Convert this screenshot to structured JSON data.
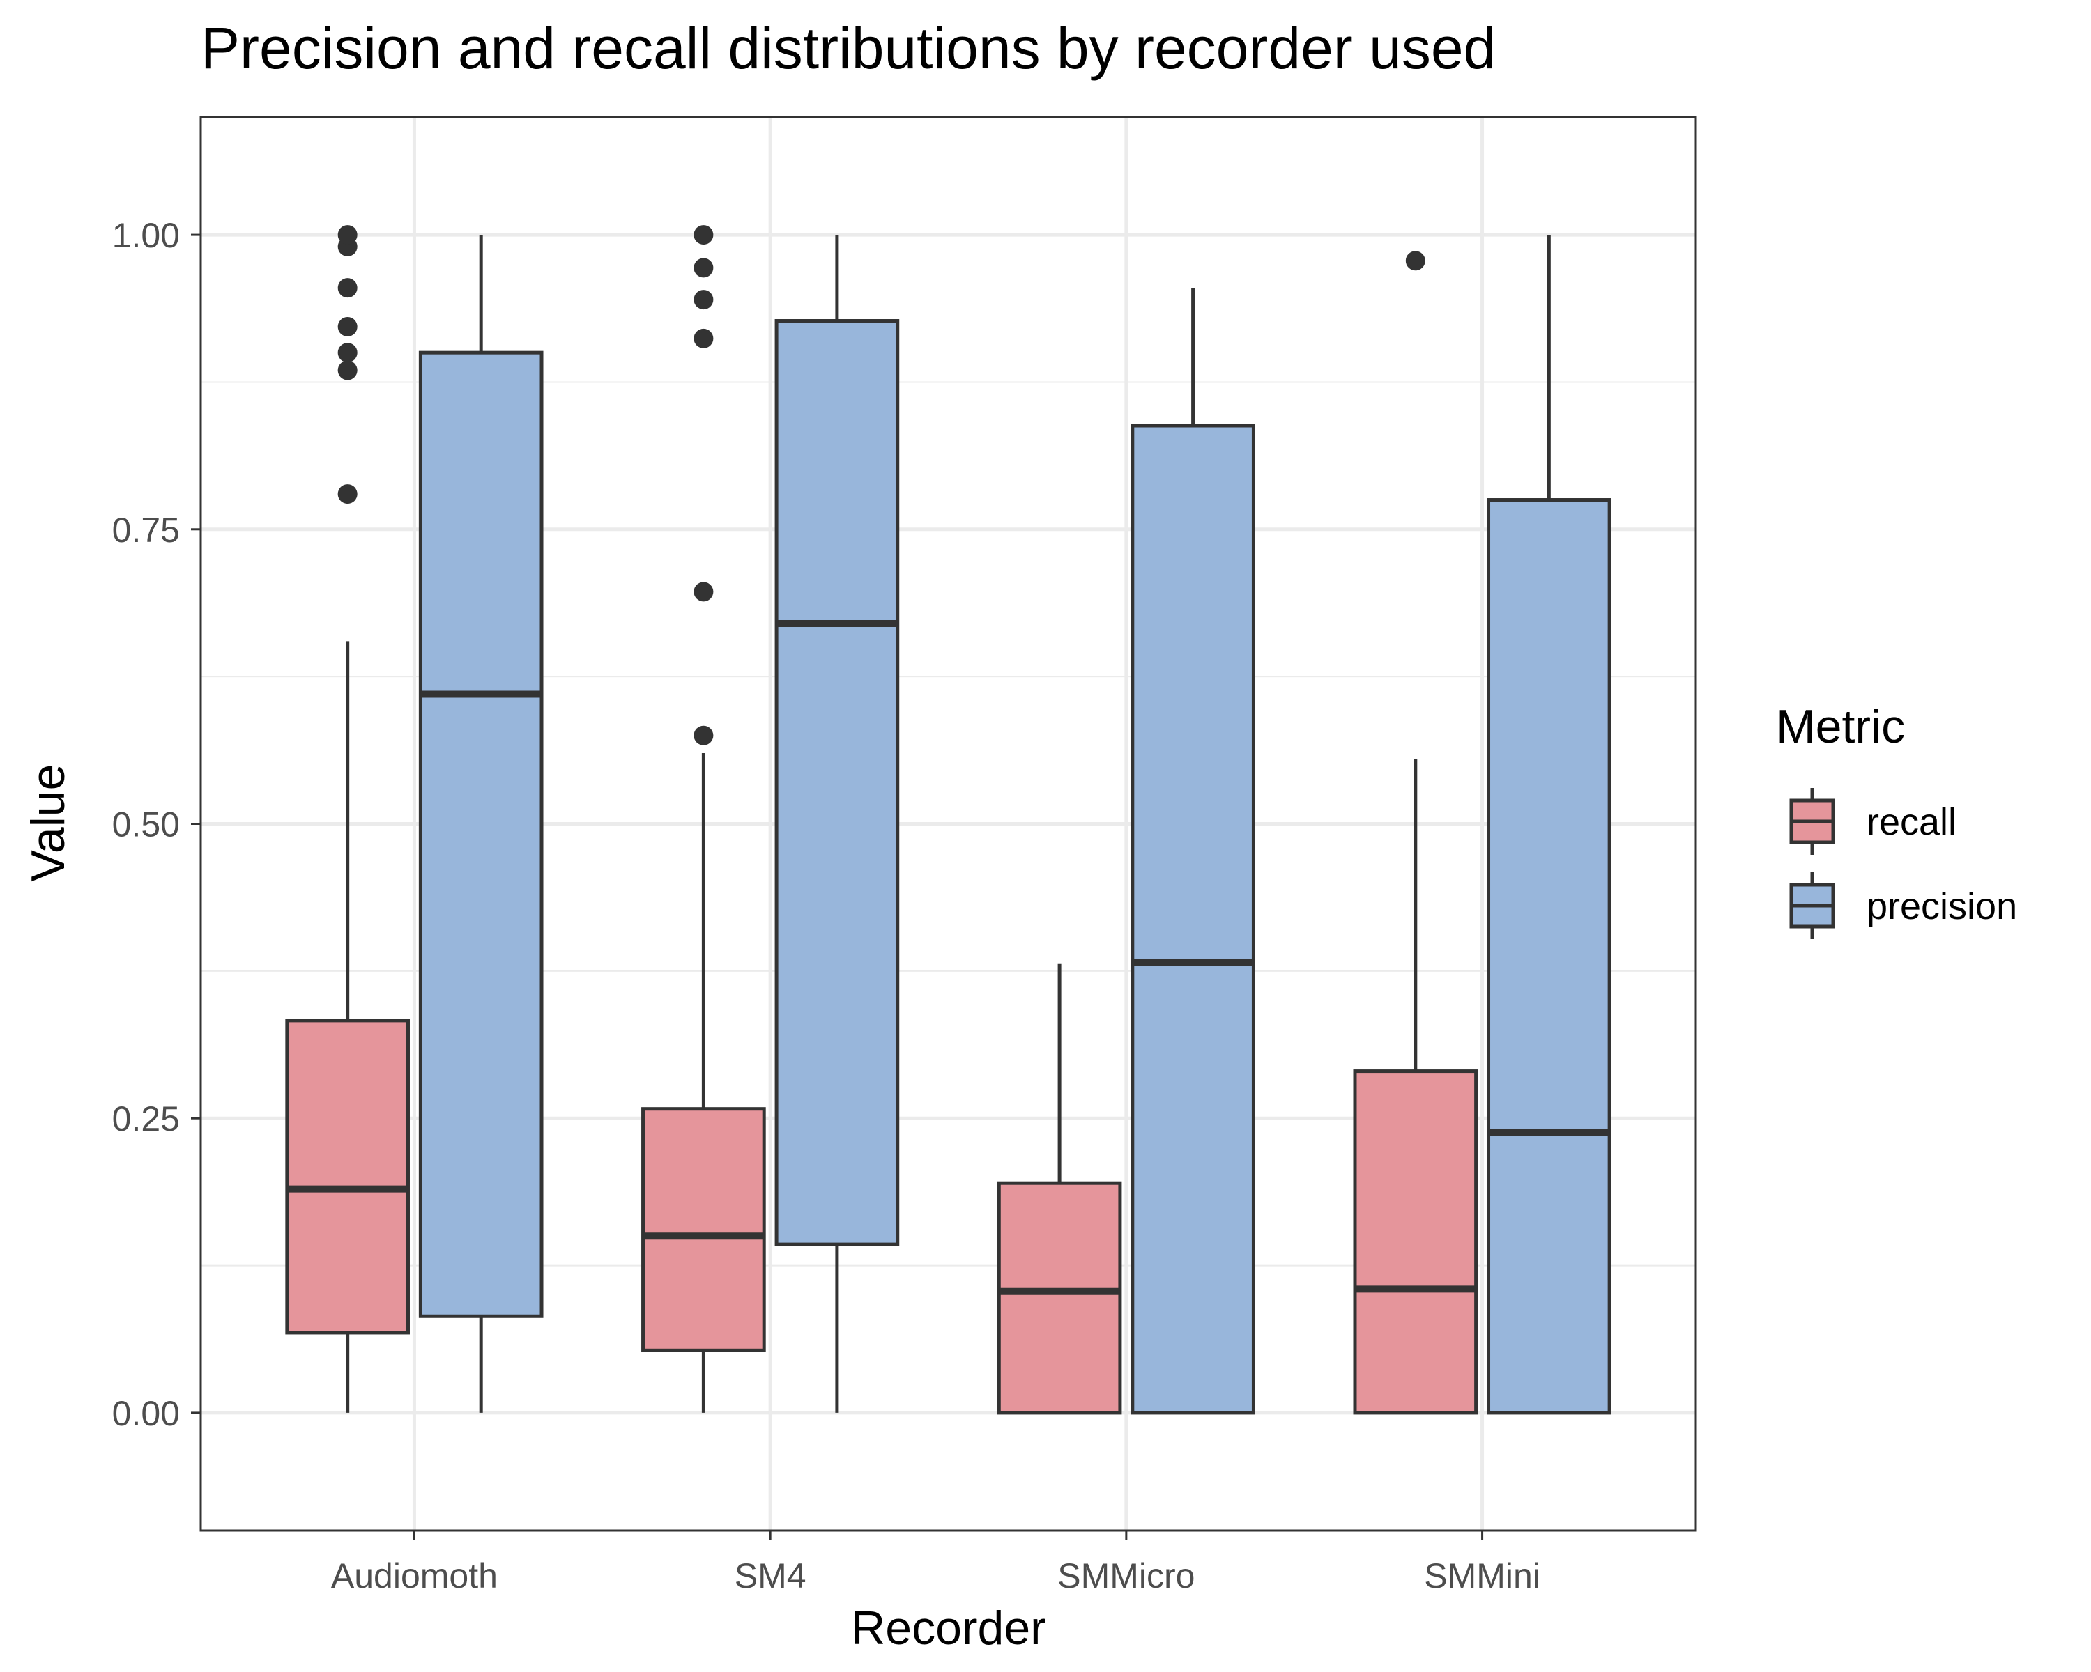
{
  "chart_data": {
    "type": "boxplot",
    "title": "Precision and recall distributions by recorder used",
    "xlabel": "Recorder",
    "ylabel": "Value",
    "ylim": [
      -0.1,
      1.1
    ],
    "y_ticks": [
      0,
      0.25,
      0.5,
      0.75,
      1.0
    ],
    "y_tick_labels": [
      "0.00",
      "0.25",
      "0.50",
      "0.75",
      "1.00"
    ],
    "categories": [
      "Audiomoth",
      "SM4",
      "SMMicro",
      "SMMini"
    ],
    "grid": true,
    "legend": {
      "title": "Metric",
      "placement": "right",
      "entries": [
        "recall",
        "precision"
      ]
    },
    "series": [
      {
        "name": "recall",
        "color": "#e5959b",
        "boxes": [
          {
            "min": 0.0,
            "q1": 0.068,
            "median": 0.19,
            "q3": 0.333,
            "max": 0.655,
            "outliers": [
              0.78,
              0.885,
              0.9,
              0.922,
              0.955,
              0.99,
              1.0
            ]
          },
          {
            "min": 0.0,
            "q1": 0.053,
            "median": 0.15,
            "q3": 0.258,
            "max": 0.56,
            "outliers": [
              0.575,
              0.697,
              0.912,
              0.945,
              0.972,
              1.0
            ]
          },
          {
            "min": 0.0,
            "q1": 0.0,
            "median": 0.103,
            "q3": 0.195,
            "max": 0.381,
            "outliers": []
          },
          {
            "min": 0.0,
            "q1": 0.0,
            "median": 0.105,
            "q3": 0.29,
            "max": 0.555,
            "outliers": [
              0.978
            ]
          }
        ]
      },
      {
        "name": "precision",
        "color": "#98b6db",
        "boxes": [
          {
            "min": 0.0,
            "q1": 0.082,
            "median": 0.61,
            "q3": 0.9,
            "max": 1.0,
            "outliers": []
          },
          {
            "min": 0.0,
            "q1": 0.143,
            "median": 0.67,
            "q3": 0.927,
            "max": 1.0,
            "outliers": []
          },
          {
            "min": 0.0,
            "q1": 0.0,
            "median": 0.382,
            "q3": 0.838,
            "max": 0.955,
            "outliers": []
          },
          {
            "min": 0.0,
            "q1": 0.0,
            "median": 0.238,
            "q3": 0.775,
            "max": 1.0,
            "outliers": []
          }
        ]
      }
    ]
  }
}
